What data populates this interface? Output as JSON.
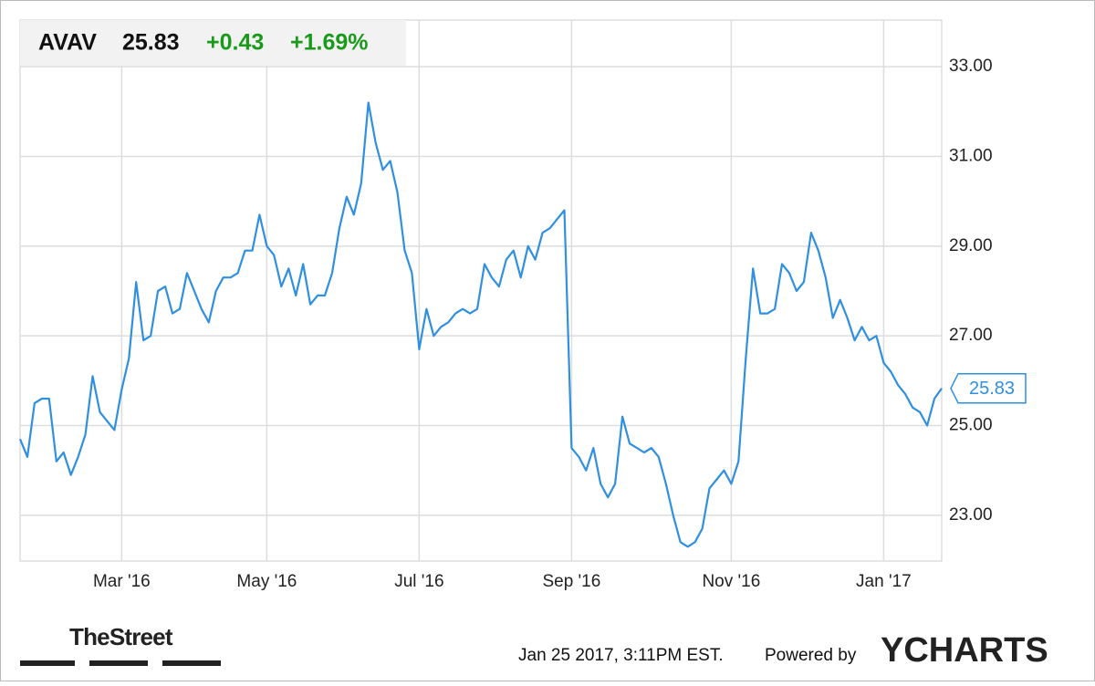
{
  "header": {
    "ticker": "AVAV",
    "change": "+0.43",
    "change_percent": "+1.69%"
  },
  "chart_data": {
    "type": "line",
    "color": "#2f8fe0",
    "grid": true,
    "categories": [
      null,
      null,
      null,
      null,
      null,
      null,
      null,
      null,
      null,
      null,
      null,
      null,
      null,
      null,
      "Mar '16",
      null,
      null,
      null,
      null,
      null,
      null,
      null,
      null,
      null,
      null,
      null,
      null,
      null,
      null,
      null,
      null,
      null,
      null,
      null,
      "May '16",
      null,
      null,
      null,
      null,
      null,
      null,
      null,
      null,
      null,
      null,
      null,
      null,
      null,
      null,
      null,
      null,
      null,
      null,
      null,
      null,
      "Jul '16",
      null,
      null,
      null,
      null,
      null,
      null,
      null,
      null,
      null,
      null,
      null,
      null,
      null,
      null,
      null,
      null,
      null,
      null,
      null,
      null,
      "Sep '16",
      null,
      null,
      null,
      null,
      null,
      null,
      null,
      null,
      null,
      null,
      null,
      null,
      null,
      null,
      null,
      null,
      null,
      null,
      null,
      null,
      null,
      "Nov '16",
      null,
      null,
      null,
      null,
      null,
      null,
      null,
      null,
      null,
      null,
      null,
      null,
      null,
      null,
      null,
      null,
      null,
      null,
      null,
      null,
      "Jan '17",
      null,
      null,
      null,
      null,
      null,
      null,
      null,
      null
    ],
    "values": [
      24.7,
      24.3,
      25.5,
      25.6,
      25.6,
      24.2,
      24.4,
      23.9,
      24.3,
      24.8,
      26.1,
      25.3,
      25.1,
      24.9,
      25.8,
      26.5,
      28.2,
      26.9,
      27.0,
      28.0,
      28.1,
      27.5,
      27.6,
      28.4,
      28.0,
      27.6,
      27.3,
      28.0,
      28.3,
      28.3,
      28.4,
      28.9,
      28.9,
      29.7,
      29.0,
      28.8,
      28.1,
      28.5,
      27.9,
      28.6,
      27.7,
      27.9,
      27.9,
      28.4,
      29.4,
      30.1,
      29.7,
      30.4,
      32.2,
      31.3,
      30.7,
      30.9,
      30.2,
      28.9,
      28.4,
      26.7,
      27.6,
      27.0,
      27.2,
      27.3,
      27.5,
      27.6,
      27.5,
      27.6,
      28.6,
      28.3,
      28.1,
      28.7,
      28.9,
      28.3,
      29.0,
      28.7,
      29.3,
      29.4,
      29.6,
      29.8,
      24.5,
      24.3,
      24.0,
      24.5,
      23.7,
      23.4,
      23.7,
      25.2,
      24.6,
      24.5,
      24.4,
      24.5,
      24.3,
      23.7,
      23.0,
      22.4,
      22.3,
      22.4,
      22.7,
      23.6,
      23.8,
      24.0,
      23.7,
      24.2,
      26.5,
      28.5,
      27.5,
      27.5,
      27.6,
      28.6,
      28.4,
      28.0,
      28.2,
      29.3,
      28.9,
      28.3,
      27.4,
      27.8,
      27.4,
      26.9,
      27.2,
      26.9,
      27.0,
      26.4,
      26.2,
      25.9,
      25.7,
      25.4,
      25.3,
      25.0,
      25.6,
      25.83
    ],
    "ylim": [
      21.98,
      34.04
    ],
    "yticks": [
      {
        "value": 23,
        "label": "23.00"
      },
      {
        "value": 25,
        "label": "25.00"
      },
      {
        "value": 27,
        "label": "27.00"
      },
      {
        "value": 29,
        "label": "29.00"
      },
      {
        "value": 31,
        "label": "31.00"
      },
      {
        "value": 33,
        "label": "33.00"
      }
    ]
  },
  "footer": {
    "logo": "TheStreet",
    "timestamp": "Jan 25 2017, 3:11PM EST.",
    "powered_by": "Powered by",
    "brand": "YCHARTS"
  }
}
